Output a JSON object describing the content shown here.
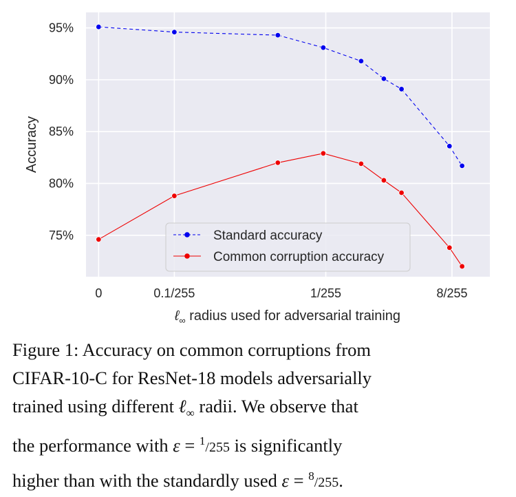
{
  "chart_data": {
    "type": "line",
    "xlabel_prefix": "ℓ",
    "xlabel_sub": "∞",
    "xlabel_rest": " radius used for adversarial training",
    "ylabel": "Accuracy",
    "ylim": [
      71,
      96.5
    ],
    "xlim": [
      -0.5,
      15.5
    ],
    "yticks": [
      {
        "value": 75,
        "label": "75%"
      },
      {
        "value": 80,
        "label": "80%"
      },
      {
        "value": 85,
        "label": "85%"
      },
      {
        "value": 90,
        "label": "90%"
      },
      {
        "value": 95,
        "label": "95%"
      }
    ],
    "xticks": [
      {
        "value": 0,
        "label": "0"
      },
      {
        "value": 3,
        "label": "0.1/255"
      },
      {
        "value": 9,
        "label": "1/255"
      },
      {
        "value": 14,
        "label": "8/255"
      }
    ],
    "series": [
      {
        "name": "Standard accuracy",
        "color": "#0000ee",
        "dashed": true,
        "x": [
          0,
          3,
          7.1,
          8.9,
          10.4,
          11.3,
          12,
          13.9,
          14.4
        ],
        "y": [
          95.1,
          94.6,
          94.3,
          93.1,
          91.8,
          90.1,
          89.1,
          83.6,
          81.7
        ]
      },
      {
        "name": "Common corruption accuracy",
        "color": "#ee0000",
        "dashed": false,
        "x": [
          0,
          3,
          7.1,
          8.9,
          10.4,
          11.3,
          12,
          13.9,
          14.4
        ],
        "y": [
          74.6,
          78.8,
          82.0,
          82.9,
          81.9,
          80.3,
          79.1,
          73.8,
          72.0
        ]
      }
    ],
    "grid": true,
    "legend_position": "lower-center"
  },
  "caption": {
    "line1": "Figure 1: Accuracy on common corruptions from",
    "line2": "CIFAR-10-C for ResNet-18 models adversarially",
    "line3_a": "trained using different ",
    "line3_math": "ℓ",
    "line3_sub": "∞",
    "line3_b": " radii. We observe that",
    "line4_a": "the performance with ",
    "line4_eps": "ε",
    "line4_eq": " = ",
    "line4_num": "1",
    "line4_den": "/255",
    "line4_b": " is significantly",
    "line5_a": "higher than with the standardly used ",
    "line5_eps": "ε",
    "line5_eq": " = ",
    "line5_num": "8",
    "line5_den": "/255",
    "line5_b": "."
  }
}
